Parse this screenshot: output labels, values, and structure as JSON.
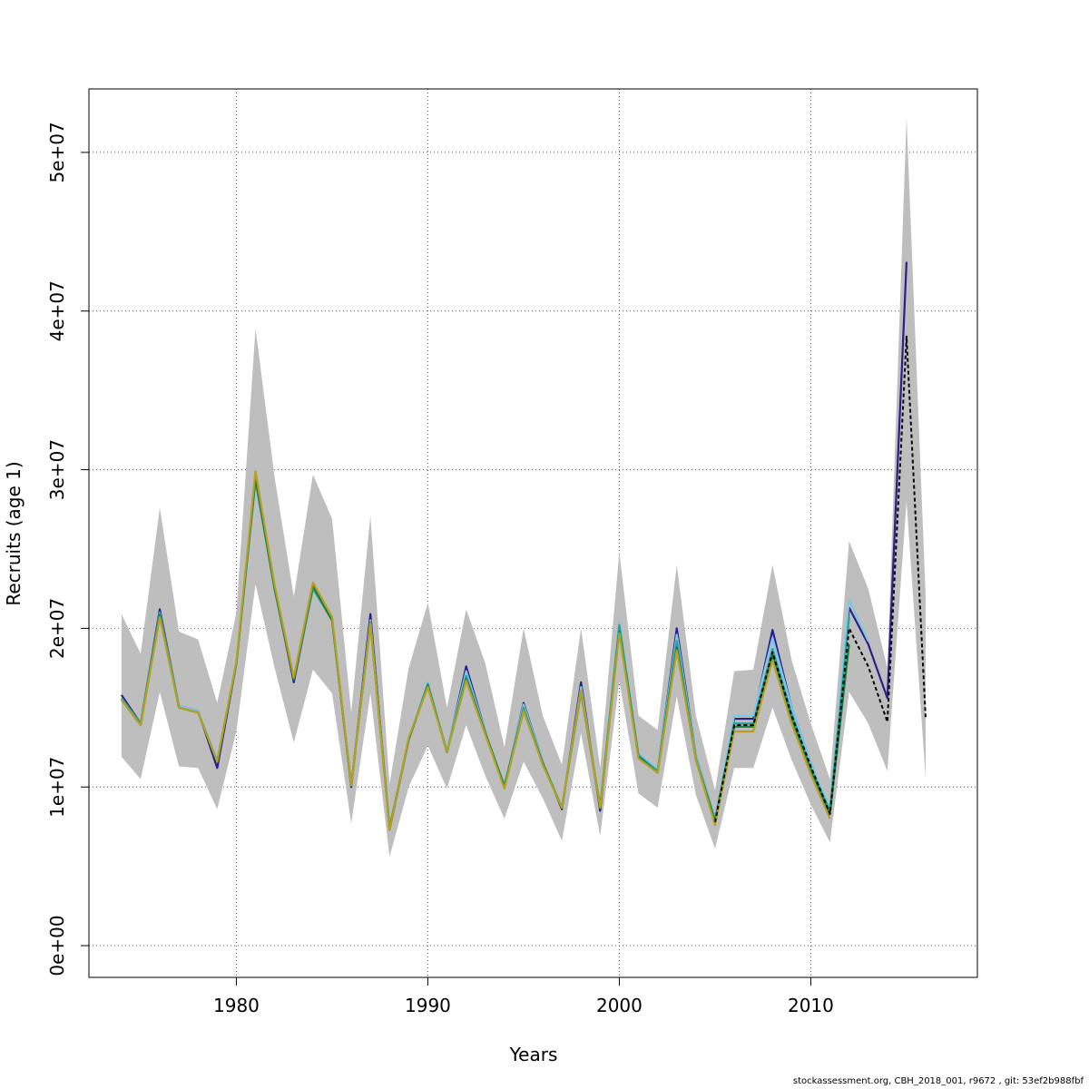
{
  "chart_data": {
    "type": "line",
    "title": "",
    "xlabel": "Years",
    "ylabel": "Recruits (age 1)",
    "xlim": [
      1972.3,
      2018.7
    ],
    "ylim": [
      -2000000,
      54000000
    ],
    "x_ticks": [
      1980,
      1990,
      2000,
      2010
    ],
    "x_tick_labels": [
      "1980",
      "1990",
      "2000",
      "2010"
    ],
    "y_ticks": [
      0,
      10000000,
      20000000,
      30000000,
      40000000,
      50000000
    ],
    "y_tick_labels": [
      "0e+00",
      "1e+07",
      "2e+07",
      "3e+07",
      "4e+07",
      "5e+07"
    ],
    "grid": true,
    "ci_band": {
      "years": [
        1974,
        1975,
        1976,
        1977,
        1978,
        1979,
        1980,
        1981,
        1982,
        1983,
        1984,
        1985,
        1986,
        1987,
        1988,
        1989,
        1990,
        1991,
        1992,
        1993,
        1994,
        1995,
        1996,
        1997,
        1998,
        1999,
        2000,
        2001,
        2002,
        2003,
        2004,
        2005,
        2006,
        2007,
        2008,
        2009,
        2010,
        2011,
        2012,
        2013,
        2014,
        2015,
        2016
      ],
      "upper": [
        20900000,
        18400000,
        27600000,
        19800000,
        19300000,
        15300000,
        21000000,
        38900000,
        29500000,
        22000000,
        29700000,
        26900000,
        14700000,
        27100000,
        10200000,
        17500000,
        21600000,
        15000000,
        21200000,
        17800000,
        12500000,
        20000000,
        14500000,
        11400000,
        20000000,
        11200000,
        24800000,
        14500000,
        13600000,
        24000000,
        14500000,
        9800000,
        17300000,
        17400000,
        24000000,
        18000000,
        14000000,
        10500000,
        25500000,
        22500000,
        17500000,
        52200000,
        22000000
      ],
      "lower": [
        11900000,
        10500000,
        16000000,
        11300000,
        11200000,
        8600000,
        13500000,
        22800000,
        17500000,
        12800000,
        17400000,
        15900000,
        7700000,
        15900000,
        5600000,
        10000000,
        12600000,
        9900000,
        13900000,
        10700000,
        8000000,
        11600000,
        9300000,
        6600000,
        13400000,
        6900000,
        16700000,
        9600000,
        8700000,
        15700000,
        9500000,
        6100000,
        11200000,
        11200000,
        15000000,
        11700000,
        8900000,
        6500000,
        16000000,
        14000000,
        11000000,
        28000000,
        10500000
      ]
    },
    "series": [
      {
        "color": "#2b1f8c",
        "x": [
          1974,
          1975,
          1976,
          1977,
          1978,
          1979,
          1980,
          1981,
          1982,
          1983,
          1984,
          1985,
          1986,
          1987,
          1988,
          1989,
          1990,
          1991,
          1992,
          1993,
          1994,
          1995,
          1996,
          1997,
          1998,
          1999,
          2000,
          2001,
          2002,
          2003,
          2004,
          2005,
          2006,
          2007,
          2008,
          2009,
          2010,
          2011,
          2012,
          2013,
          2014,
          2015
        ],
        "y": [
          15800000,
          14000000,
          21200000,
          15100000,
          14800000,
          11200000,
          17800000,
          29500000,
          22500000,
          16600000,
          22600000,
          20600000,
          10000000,
          20900000,
          7300000,
          13000000,
          16400000,
          12200000,
          17600000,
          13500000,
          10000000,
          15300000,
          11600000,
          8600000,
          16600000,
          8500000,
          20300000,
          12000000,
          11000000,
          20000000,
          12000000,
          8000000,
          14300000,
          14300000,
          19900000,
          15000000,
          11500000,
          8500000,
          21300000,
          19000000,
          15600000,
          43100000
        ]
      },
      {
        "color": "#7ec8e3",
        "x": [
          1974,
          1975,
          1976,
          1977,
          1978,
          1979,
          1980,
          1981,
          1982,
          1983,
          1984,
          1985,
          1986,
          1987,
          1988,
          1989,
          1990,
          1991,
          1992,
          1993,
          1994,
          1995,
          1996,
          1997,
          1998,
          1999,
          2000,
          2001,
          2002,
          2003,
          2004,
          2005,
          2006,
          2007,
          2008,
          2009,
          2010,
          2011,
          2012,
          2013
        ],
        "y": [
          15600000,
          14000000,
          21000000,
          15100000,
          14800000,
          11700000,
          17800000,
          29500000,
          22500000,
          16800000,
          22600000,
          20600000,
          10100000,
          20500000,
          7400000,
          13000000,
          16600000,
          12300000,
          17300000,
          13500000,
          10100000,
          15200000,
          11600000,
          8700000,
          16300000,
          8700000,
          20400000,
          12100000,
          11100000,
          19600000,
          12000000,
          8000000,
          14500000,
          14500000,
          19400000,
          15000000,
          11500000,
          8600000,
          21800000,
          19200000
        ]
      },
      {
        "color": "#20a39e",
        "x": [
          1974,
          1975,
          1976,
          1977,
          1978,
          1979,
          1980,
          1981,
          1982,
          1983,
          1984,
          1985,
          1986,
          1987,
          1988,
          1989,
          1990,
          1991,
          1992,
          1993,
          1994,
          1995,
          1996,
          1997,
          1998,
          1999,
          2000,
          2001,
          2002,
          2003,
          2004,
          2005,
          2006,
          2007,
          2008,
          2009,
          2010,
          2011,
          2012
        ],
        "y": [
          15600000,
          14000000,
          21000000,
          15000000,
          14700000,
          11600000,
          17800000,
          29300000,
          22400000,
          16800000,
          22500000,
          20500000,
          10100000,
          20400000,
          7400000,
          13000000,
          16500000,
          12200000,
          17000000,
          13400000,
          10100000,
          15000000,
          11500000,
          8700000,
          16100000,
          8800000,
          20200000,
          12000000,
          11000000,
          19200000,
          11800000,
          7900000,
          14000000,
          14000000,
          18700000,
          14600000,
          11200000,
          8500000,
          20700000
        ]
      },
      {
        "color": "#1b7a3e",
        "x": [
          1974,
          1975,
          1976,
          1977,
          1978,
          1979,
          1980,
          1981,
          1982,
          1983,
          1984,
          1985,
          1986,
          1987,
          1988,
          1989,
          1990,
          1991,
          1992,
          1993,
          1994,
          1995,
          1996,
          1997,
          1998,
          1999,
          2000,
          2001,
          2002,
          2003,
          2004,
          2005,
          2006,
          2007,
          2008,
          2009,
          2010,
          2011,
          2012
        ],
        "y": [
          15500000,
          13900000,
          20800000,
          15000000,
          14700000,
          11600000,
          17800000,
          29500000,
          22500000,
          16800000,
          22700000,
          20500000,
          10100000,
          20300000,
          7400000,
          13000000,
          16400000,
          12200000,
          16800000,
          13400000,
          10000000,
          14800000,
          11500000,
          8700000,
          16000000,
          8700000,
          19800000,
          11900000,
          10900000,
          18800000,
          11700000,
          7800000,
          13800000,
          13800000,
          18300000,
          14200000,
          11000000,
          8300000,
          19000000
        ]
      },
      {
        "color": "#b5a020",
        "x": [
          1974,
          1975,
          1976,
          1977,
          1978,
          1979,
          1980,
          1981,
          1982,
          1983,
          1984,
          1985,
          1986,
          1987,
          1988,
          1989,
          1990,
          1991,
          1992,
          1993,
          1994,
          1995,
          1996,
          1997,
          1998,
          1999,
          2000,
          2001,
          2002,
          2003,
          2004,
          2005,
          2006,
          2007,
          2008,
          2009,
          2010,
          2011
        ],
        "y": [
          15500000,
          13900000,
          20700000,
          15000000,
          14700000,
          11600000,
          17900000,
          29900000,
          22700000,
          16900000,
          22900000,
          20700000,
          10100000,
          20300000,
          7300000,
          13100000,
          16300000,
          12200000,
          16700000,
          13300000,
          9900000,
          14800000,
          11400000,
          8700000,
          16100000,
          8700000,
          19700000,
          11800000,
          10900000,
          18600000,
          11700000,
          7600000,
          13500000,
          13500000,
          18000000,
          14000000,
          10800000,
          8000000
        ]
      },
      {
        "color": "#000000",
        "dashed": true,
        "x": [
          2005,
          2006,
          2007,
          2008,
          2009,
          2010,
          2011,
          2012,
          2013,
          2014,
          2015,
          2016
        ],
        "y": [
          7800000,
          13900000,
          13900000,
          18500000,
          14500000,
          11300000,
          8300000,
          20000000,
          17600000,
          14100000,
          38400000,
          14300000
        ]
      }
    ]
  },
  "footer": "stockassessment.org, CBH_2018_001, r9672 , git: 53ef2b988fbf"
}
